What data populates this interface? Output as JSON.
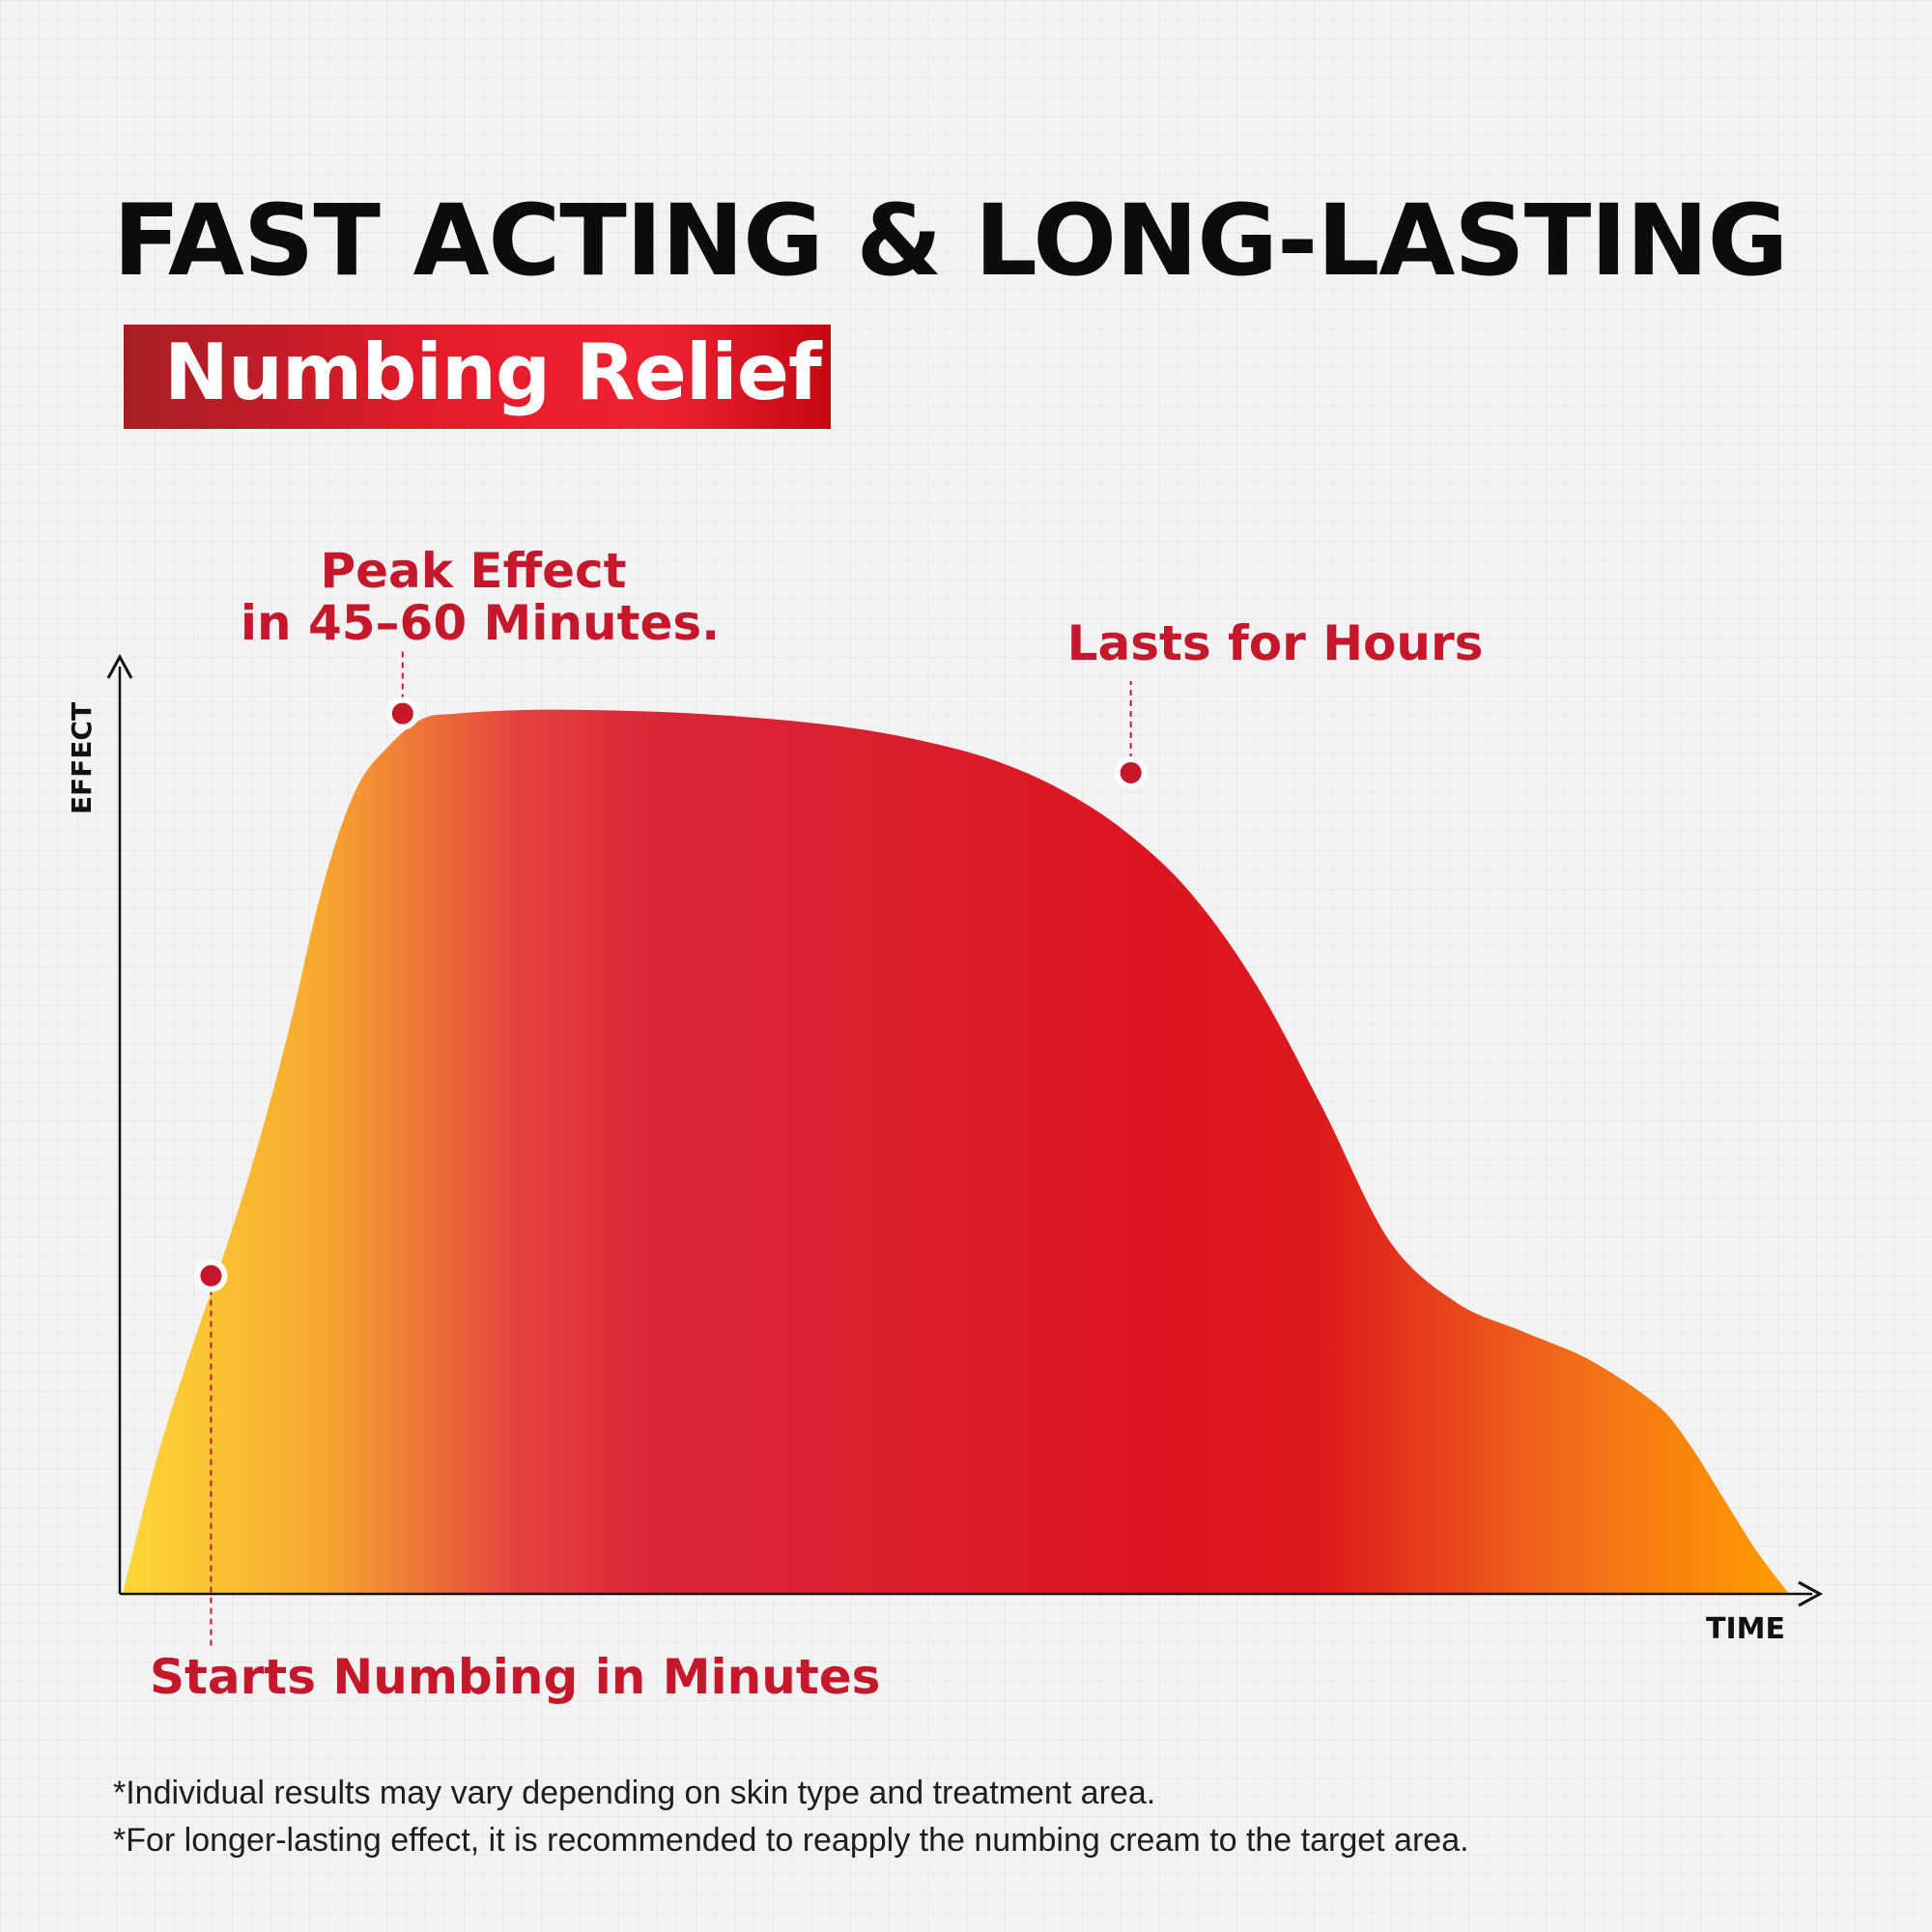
{
  "title": "FAST ACTING & LONG-LASTING",
  "subtitle": "Numbing Relief",
  "colors": {
    "accent": "#c5182b",
    "badge_gradient": [
      "#a51e24",
      "#e41b2b",
      "#ef2233",
      "#c40812"
    ],
    "area_gradient": [
      "#fdd835",
      "#f7a730",
      "#e4413f",
      "#d92638",
      "#dc1520",
      "#ff9d00"
    ]
  },
  "chart_data": {
    "type": "area",
    "xlabel": "TIME",
    "ylabel": "EFFECT",
    "xlim": [
      0,
      100
    ],
    "ylim": [
      0,
      100
    ],
    "grid": true,
    "x": [
      0,
      2,
      4,
      6,
      8,
      10,
      12,
      14,
      16,
      18,
      20,
      24,
      28,
      32,
      36,
      40,
      44,
      48,
      52,
      56,
      60,
      64,
      68,
      72,
      76,
      80,
      84,
      88,
      92,
      94,
      96,
      98,
      100
    ],
    "y": [
      0,
      15,
      27,
      38,
      50,
      64,
      80,
      91,
      96,
      99,
      99.6,
      100,
      100,
      99.8,
      99.4,
      98.8,
      97.9,
      96.5,
      94.5,
      91.3,
      86.5,
      79.5,
      69,
      55,
      40,
      33,
      29.7,
      26.5,
      21.5,
      17,
      11,
      5,
      0
    ],
    "annotations": [
      {
        "label": "Starts Numbing in Minutes",
        "x": 5.3,
        "y": 36
      },
      {
        "label_lines": [
          "Peak Effect",
          "in 45–60 Minutes."
        ],
        "x": 16.8,
        "y": 99.6
      },
      {
        "label": "Lasts for Hours",
        "x": 60.5,
        "y": 92.9
      }
    ]
  },
  "footnotes": [
    "*Individual results may vary depending on skin type and treatment area.",
    "*For longer-lasting effect, it is recommended to reapply the numbing cream to the target area."
  ]
}
